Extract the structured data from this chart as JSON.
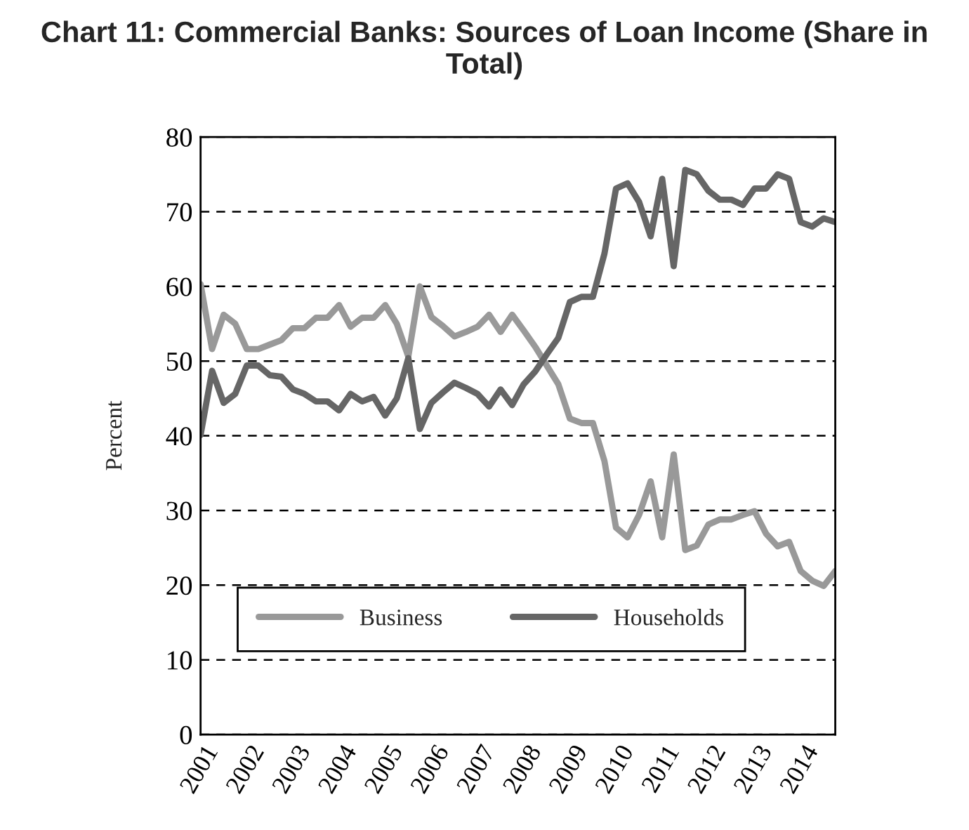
{
  "chart_data": {
    "type": "line",
    "title": "Chart 11: Commercial Banks: Sources of Loan Income (Share in Total)",
    "ylabel": "Percent",
    "categories": [
      "2001",
      null,
      null,
      null,
      "2002",
      null,
      null,
      null,
      "2003",
      null,
      null,
      null,
      "2004",
      null,
      null,
      null,
      "2005",
      null,
      null,
      null,
      "2006",
      null,
      null,
      null,
      "2007",
      null,
      null,
      null,
      "2008",
      null,
      null,
      null,
      "2009",
      null,
      null,
      null,
      "2010",
      null,
      null,
      null,
      "2011",
      null,
      null,
      null,
      "2012",
      null,
      null,
      null,
      "2013",
      null,
      null,
      null,
      "2014",
      null,
      null,
      null
    ],
    "series": [
      {
        "name": "Business",
        "color": "#999999",
        "values": [
          60.3,
          51.6,
          56.2,
          55,
          51.6,
          51.6,
          52.2,
          52.8,
          54.4,
          54.4,
          55.8,
          55.8,
          57.5,
          54.6,
          55.8,
          55.8,
          57.5,
          55,
          50.6,
          60,
          55.9,
          54.7,
          53.3,
          53.9,
          54.6,
          56.2,
          53.9,
          56.2,
          54.1,
          51.9,
          49.4,
          46.9,
          42.3,
          41.7,
          41.7,
          36.6,
          27.7,
          26.4,
          29.4,
          33.9,
          26.4,
          37.5,
          24.7,
          25.3,
          28.1,
          28.8,
          28.8,
          29.4,
          29.9,
          26.9,
          25.2,
          25.8,
          21.9,
          20.6,
          19.9,
          21.9
        ]
      },
      {
        "name": "Households",
        "color": "#666666",
        "values": [
          40.1,
          48.7,
          44.4,
          45.6,
          49.4,
          49.4,
          48.1,
          47.9,
          46.2,
          45.6,
          44.6,
          44.6,
          43.4,
          45.6,
          44.6,
          45.2,
          42.7,
          45,
          50.4,
          40.9,
          44.4,
          45.8,
          47.1,
          46.4,
          45.6,
          43.9,
          46.2,
          44.1,
          46.9,
          48.6,
          50.9,
          53.1,
          57.9,
          58.6,
          58.6,
          64.4,
          73.1,
          73.8,
          71.3,
          66.7,
          74.4,
          62.7,
          75.6,
          75,
          72.8,
          71.6,
          71.6,
          70.9,
          73.1,
          73.1,
          75,
          74.4,
          68.6,
          68,
          69.1,
          68.6
        ]
      }
    ],
    "ylim": [
      0,
      80
    ],
    "yticks": [
      0,
      10,
      20,
      30,
      40,
      50,
      60,
      70,
      80
    ],
    "grid": "y",
    "legend": "bottom left",
    "line_style": "solid",
    "marker": "none"
  }
}
